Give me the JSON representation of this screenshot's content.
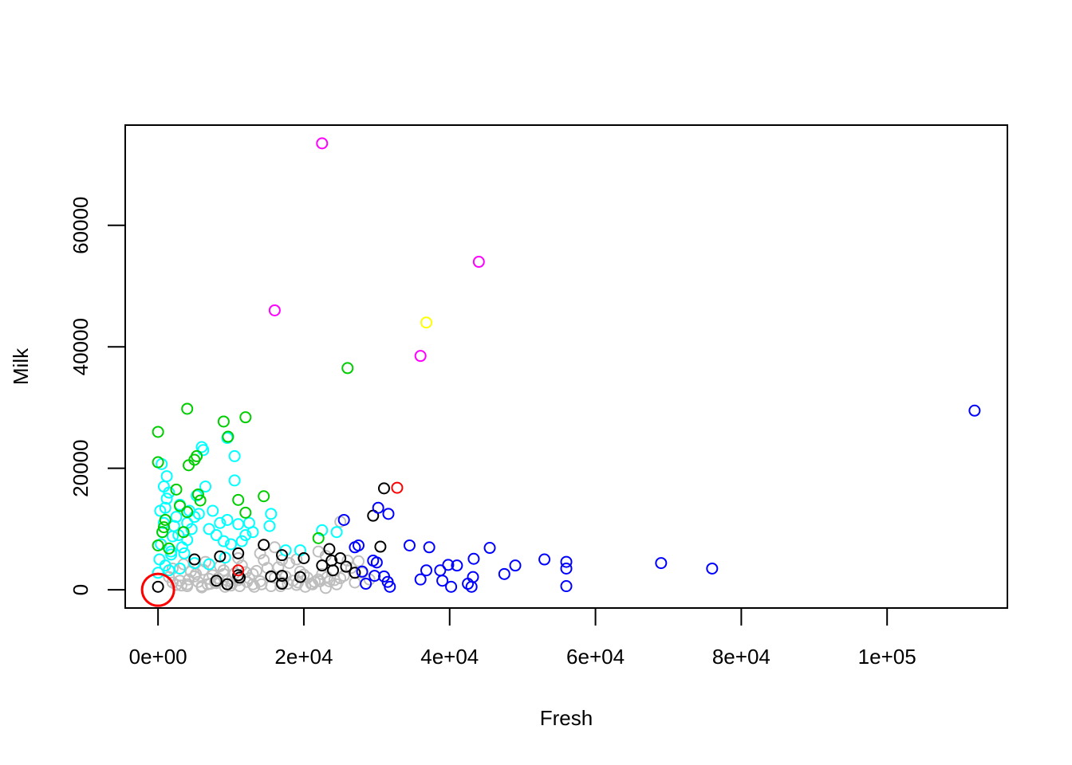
{
  "chart_data": {
    "type": "scatter",
    "xlabel": "Fresh",
    "ylabel": "Milk",
    "xlim": [
      -4500,
      116500
    ],
    "ylim": [
      -3000,
      76500
    ],
    "x_ticks": [
      {
        "value": 0,
        "label": "0e+00"
      },
      {
        "value": 20000,
        "label": "2e+04"
      },
      {
        "value": 40000,
        "label": "4e+04"
      },
      {
        "value": 60000,
        "label": "6e+04"
      },
      {
        "value": 80000,
        "label": "8e+04"
      },
      {
        "value": 100000,
        "label": "1e+05"
      }
    ],
    "y_ticks": [
      {
        "value": 0,
        "label": "0"
      },
      {
        "value": 20000,
        "label": "20000"
      },
      {
        "value": 40000,
        "label": "40000"
      },
      {
        "value": 60000,
        "label": "60000"
      }
    ],
    "grid": false,
    "marker": "open-circle",
    "highlight": {
      "x": 0,
      "y": 0,
      "color": "#ff0000",
      "marker": "large-open-circle"
    },
    "colors": {
      "gray": "#bebebe",
      "cyan": "#00ffff",
      "green": "#00cd00",
      "black": "#000000",
      "blue": "#0000ff",
      "magenta": "#ff00ff",
      "yellow": "#ffff00",
      "red": "#ff0000"
    },
    "series": [
      {
        "color": "gray",
        "points": [
          [
            3000,
            1500
          ],
          [
            4000,
            900
          ],
          [
            5000,
            2200
          ],
          [
            6000,
            600
          ],
          [
            7000,
            1800
          ],
          [
            8000,
            1100
          ],
          [
            9000,
            2600
          ],
          [
            10000,
            700
          ],
          [
            11000,
            1600
          ],
          [
            12000,
            2900
          ],
          [
            13000,
            900
          ],
          [
            14000,
            1400
          ],
          [
            15000,
            3600
          ],
          [
            16000,
            2000
          ],
          [
            17000,
            1200
          ],
          [
            18000,
            4400
          ],
          [
            19000,
            800
          ],
          [
            20000,
            2500
          ],
          [
            21000,
            1000
          ],
          [
            22000,
            1700
          ],
          [
            23000,
            300
          ],
          [
            24000,
            3200
          ],
          [
            25000,
            1900
          ],
          [
            26000,
            4800
          ],
          [
            27000,
            1200
          ],
          [
            2000,
            3500
          ],
          [
            3500,
            4200
          ],
          [
            4500,
            3000
          ],
          [
            5500,
            1300
          ],
          [
            6500,
            4600
          ],
          [
            7500,
            2400
          ],
          [
            8500,
            3900
          ],
          [
            9500,
            1500
          ],
          [
            10500,
            2700
          ],
          [
            11500,
            4000
          ],
          [
            12500,
            1900
          ],
          [
            13500,
            3100
          ],
          [
            14500,
            4900
          ],
          [
            15500,
            600
          ],
          [
            16500,
            3700
          ],
          [
            17500,
            2200
          ],
          [
            18500,
            1500
          ],
          [
            19500,
            3000
          ],
          [
            20500,
            2000
          ],
          [
            21500,
            1300
          ],
          [
            22500,
            2600
          ],
          [
            23500,
            1400
          ],
          [
            24500,
            900
          ],
          [
            25500,
            2300
          ],
          [
            26500,
            3600
          ],
          [
            28000,
            2800
          ],
          [
            29000,
            1700
          ],
          [
            2500,
            800
          ],
          [
            1500,
            2100
          ],
          [
            6800,
            900
          ],
          [
            7800,
            1200
          ],
          [
            9200,
            500
          ],
          [
            10200,
            1100
          ],
          [
            11200,
            600
          ],
          [
            12200,
            1300
          ],
          [
            13200,
            500
          ],
          [
            14200,
            900
          ],
          [
            16800,
            600
          ],
          [
            17800,
            1000
          ],
          [
            19200,
            1200
          ],
          [
            20200,
            500
          ],
          [
            21200,
            900
          ],
          [
            22200,
            1400
          ],
          [
            23200,
            2100
          ],
          [
            24200,
            1600
          ],
          [
            3200,
            700
          ],
          [
            4200,
            1700
          ],
          [
            5200,
            2600
          ],
          [
            6200,
            3300
          ],
          [
            7200,
            1000
          ],
          [
            8200,
            1900
          ],
          [
            25000,
            11200
          ],
          [
            16000,
            7000
          ],
          [
            19000,
            5000
          ],
          [
            23000,
            5600
          ],
          [
            17000,
            4900
          ],
          [
            14000,
            6000
          ],
          [
            11000,
            5200
          ],
          [
            13000,
            2600
          ],
          [
            9000,
            3200
          ],
          [
            6000,
            400
          ],
          [
            4000,
            600
          ],
          [
            2000,
            1200
          ],
          [
            27500,
            4700
          ],
          [
            22000,
            6300
          ]
        ]
      },
      {
        "color": "cyan",
        "points": [
          [
            0,
            2800
          ],
          [
            200,
            5000
          ],
          [
            400,
            7500
          ],
          [
            600,
            9500
          ],
          [
            800,
            11000
          ],
          [
            1000,
            13500
          ],
          [
            1200,
            15000
          ],
          [
            1500,
            16000
          ],
          [
            1800,
            6300
          ],
          [
            2000,
            8800
          ],
          [
            2200,
            10500
          ],
          [
            2500,
            12000
          ],
          [
            2800,
            9000
          ],
          [
            3000,
            14000
          ],
          [
            3300,
            7000
          ],
          [
            3600,
            6000
          ],
          [
            4000,
            11000
          ],
          [
            4300,
            13000
          ],
          [
            4600,
            10000
          ],
          [
            5000,
            12000
          ],
          [
            5300,
            15500
          ],
          [
            5600,
            12500
          ],
          [
            6000,
            23500
          ],
          [
            6200,
            23000
          ],
          [
            6500,
            17000
          ],
          [
            7000,
            10000
          ],
          [
            7500,
            13000
          ],
          [
            8000,
            9000
          ],
          [
            8500,
            11000
          ],
          [
            9000,
            8000
          ],
          [
            9500,
            11500
          ],
          [
            10000,
            7500
          ],
          [
            10500,
            18000
          ],
          [
            11000,
            10800
          ],
          [
            11500,
            8000
          ],
          [
            12000,
            9000
          ],
          [
            12500,
            11000
          ],
          [
            13000,
            9500
          ],
          [
            15500,
            12500
          ],
          [
            15300,
            10500
          ],
          [
            24500,
            9500
          ],
          [
            22500,
            9800
          ],
          [
            19500,
            6500
          ],
          [
            17500,
            6500
          ],
          [
            1000,
            4000
          ],
          [
            1500,
            3200
          ],
          [
            3000,
            3500
          ],
          [
            5000,
            4400
          ],
          [
            7000,
            4200
          ],
          [
            9200,
            5300
          ],
          [
            500,
            20700
          ],
          [
            1200,
            18700
          ],
          [
            800,
            17000
          ],
          [
            300,
            13000
          ],
          [
            10500,
            22000
          ],
          [
            9500,
            25000
          ],
          [
            4000,
            8200
          ],
          [
            1800,
            5800
          ]
        ]
      },
      {
        "color": "green",
        "points": [
          [
            0,
            26000
          ],
          [
            0,
            21000
          ],
          [
            4000,
            29800
          ],
          [
            4200,
            20500
          ],
          [
            5000,
            21400
          ],
          [
            5300,
            22000
          ],
          [
            9000,
            27700
          ],
          [
            9600,
            25200
          ],
          [
            12000,
            28400
          ],
          [
            11000,
            14800
          ],
          [
            14500,
            15400
          ],
          [
            12000,
            12700
          ],
          [
            5500,
            15700
          ],
          [
            5800,
            14700
          ],
          [
            4000,
            12800
          ],
          [
            2500,
            16500
          ],
          [
            3000,
            13800
          ],
          [
            1000,
            11500
          ],
          [
            800,
            10300
          ],
          [
            600,
            9500
          ],
          [
            0,
            7300
          ],
          [
            1500,
            6800
          ],
          [
            26000,
            36500
          ],
          [
            22000,
            8500
          ],
          [
            3500,
            9500
          ]
        ]
      },
      {
        "color": "black",
        "points": [
          [
            0,
            500
          ],
          [
            5000,
            5000
          ],
          [
            8500,
            5500
          ],
          [
            11000,
            6000
          ],
          [
            11000,
            2400
          ],
          [
            11200,
            2000
          ],
          [
            14500,
            7400
          ],
          [
            15500,
            2200
          ],
          [
            17000,
            1000
          ],
          [
            17000,
            5700
          ],
          [
            17000,
            2300
          ],
          [
            19500,
            2100
          ],
          [
            20000,
            5200
          ],
          [
            22500,
            4000
          ],
          [
            23500,
            6700
          ],
          [
            23800,
            4800
          ],
          [
            24000,
            3200
          ],
          [
            25000,
            5200
          ],
          [
            25800,
            3800
          ],
          [
            27000,
            2800
          ],
          [
            29500,
            12200
          ],
          [
            30500,
            7100
          ],
          [
            31000,
            16700
          ],
          [
            8000,
            1500
          ],
          [
            9500,
            900
          ]
        ]
      },
      {
        "color": "blue",
        "points": [
          [
            25500,
            11500
          ],
          [
            27000,
            7000
          ],
          [
            27500,
            7300
          ],
          [
            28000,
            3000
          ],
          [
            28500,
            1000
          ],
          [
            29500,
            4800
          ],
          [
            30000,
            4500
          ],
          [
            29700,
            2300
          ],
          [
            30200,
            13500
          ],
          [
            31000,
            2200
          ],
          [
            31500,
            1300
          ],
          [
            31800,
            500
          ],
          [
            31600,
            12500
          ],
          [
            34500,
            7300
          ],
          [
            36000,
            1700
          ],
          [
            36800,
            3200
          ],
          [
            37200,
            7000
          ],
          [
            38700,
            3200
          ],
          [
            39000,
            1500
          ],
          [
            39800,
            4100
          ],
          [
            40200,
            500
          ],
          [
            41000,
            4000
          ],
          [
            42500,
            1000
          ],
          [
            43000,
            500
          ],
          [
            43200,
            2100
          ],
          [
            43300,
            5100
          ],
          [
            45500,
            6900
          ],
          [
            47500,
            2600
          ],
          [
            49000,
            4000
          ],
          [
            53000,
            5000
          ],
          [
            56000,
            4600
          ],
          [
            56000,
            3500
          ],
          [
            56000,
            600
          ],
          [
            69000,
            4400
          ],
          [
            76000,
            3500
          ],
          [
            112000,
            29500
          ]
        ]
      },
      {
        "color": "magenta",
        "points": [
          [
            22500,
            73500
          ],
          [
            44000,
            54000
          ],
          [
            16000,
            46000
          ],
          [
            36000,
            38500
          ]
        ]
      },
      {
        "color": "yellow",
        "points": [
          [
            36800,
            44000
          ]
        ]
      },
      {
        "color": "red",
        "points": [
          [
            32800,
            16800
          ],
          [
            11000,
            3200
          ]
        ]
      }
    ]
  }
}
